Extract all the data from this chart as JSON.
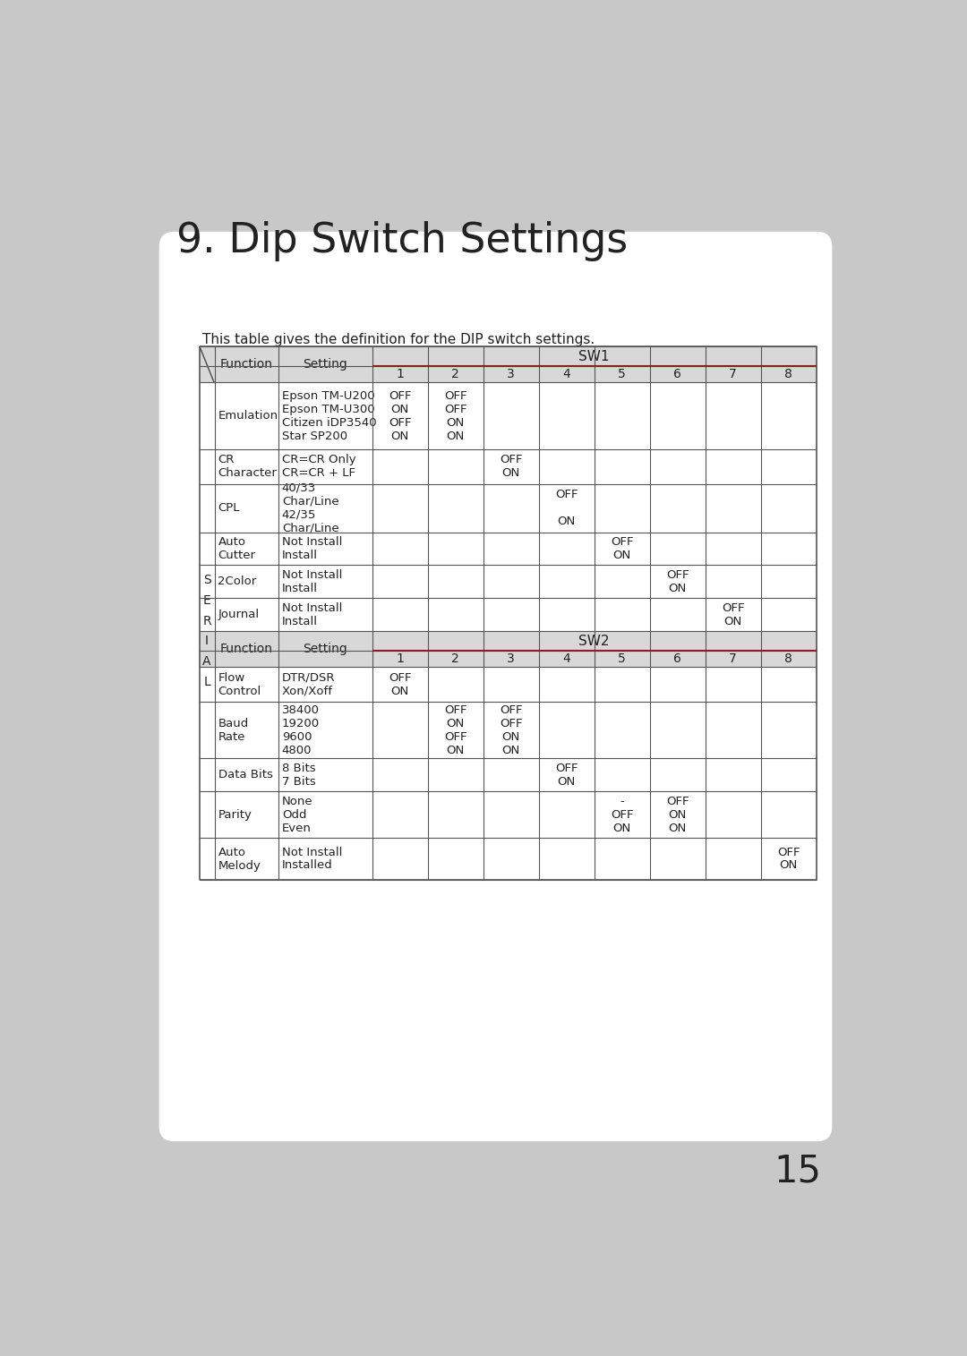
{
  "title": "9. Dip Switch Settings",
  "subtitle": "This table gives the definition for the DIP switch settings.",
  "page_number": "15",
  "bg_color": "#c8c8c8",
  "card_color": "#ffffff",
  "header_bg": "#d8d8d8",
  "header_border": "#8b2020",
  "table_border": "#555555",
  "serial_label": "S\nE\nR\nI\nA\nL",
  "sw1_label": "SW1",
  "sw2_label": "SW2",
  "sw1_rows": [
    {
      "function": "Emulation",
      "setting": "Epson TM-U200\nEpson TM-U300\nCitizen iDP3540\nStar SP200",
      "cols": [
        "OFF\nON\nOFF\nON",
        "OFF\nOFF\nON\nON",
        "",
        "",
        "",
        "",
        "",
        ""
      ]
    },
    {
      "function": "CR\nCharacter",
      "setting": "CR=CR Only\nCR=CR + LF",
      "cols": [
        "",
        "",
        "OFF\nON",
        "",
        "",
        "",
        "",
        ""
      ]
    },
    {
      "function": "CPL",
      "setting": "40/33\nChar/Line\n42/35\nChar/Line",
      "cols": [
        "",
        "",
        "",
        "OFF\n\nON",
        "",
        "",
        "",
        ""
      ]
    },
    {
      "function": "Auto\nCutter",
      "setting": "Not Install\nInstall",
      "cols": [
        "",
        "",
        "",
        "",
        "OFF\nON",
        "",
        "",
        ""
      ]
    },
    {
      "function": "2Color",
      "setting": "Not Install\nInstall",
      "cols": [
        "",
        "",
        "",
        "",
        "",
        "OFF\nON",
        "",
        ""
      ]
    },
    {
      "function": "Journal",
      "setting": "Not Install\nInstall",
      "cols": [
        "",
        "",
        "",
        "",
        "",
        "",
        "OFF\nON",
        ""
      ]
    }
  ],
  "sw2_rows": [
    {
      "function": "Flow\nControl",
      "setting": "DTR/DSR\nXon/Xoff",
      "cols": [
        "OFF\nON",
        "",
        "",
        "",
        "",
        "",
        "",
        ""
      ]
    },
    {
      "function": "Baud\nRate",
      "setting": "38400\n19200\n9600\n4800",
      "cols": [
        "",
        "OFF\nON\nOFF\nON",
        "OFF\nOFF\nON\nON",
        "",
        "",
        "",
        "",
        ""
      ]
    },
    {
      "function": "Data Bits",
      "setting": "8 Bits\n7 Bits",
      "cols": [
        "",
        "",
        "",
        "OFF\nON",
        "",
        "",
        "",
        ""
      ]
    },
    {
      "function": "Parity",
      "setting": "None\nOdd\nEven",
      "cols": [
        "",
        "",
        "",
        "",
        "-\nOFF\nON",
        "OFF\nON\nON",
        "",
        ""
      ]
    },
    {
      "function": "Auto\nMelody",
      "setting": "Not Install\nInstalled",
      "cols": [
        "",
        "",
        "",
        "",
        "",
        "",
        "",
        "OFF\nON"
      ]
    }
  ]
}
